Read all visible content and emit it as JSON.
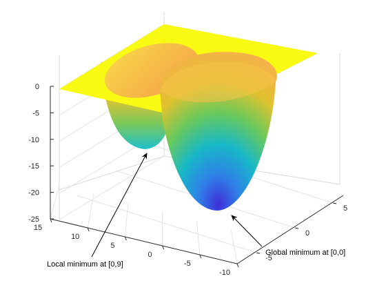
{
  "chart_data": {
    "type": "surface3d",
    "title": "",
    "xlabel": "",
    "ylabel": "",
    "zlabel": "",
    "grid": true,
    "colormap": "parula",
    "z_axis": {
      "range": [
        -25,
        0
      ],
      "ticks": [
        "0",
        "-5",
        "-10",
        "-15",
        "-20",
        "-25"
      ]
    },
    "y_axis": {
      "range": [
        -10,
        15
      ],
      "ticks": [
        "15",
        "10",
        "5",
        "0",
        "-5",
        "-10"
      ]
    },
    "x_axis": {
      "range": [
        -5,
        5
      ],
      "ticks": [
        "-5",
        "0",
        "5"
      ]
    },
    "surface": {
      "plateau_z": 0,
      "wells": [
        {
          "x": 0,
          "y": 0,
          "z_min": -24
        },
        {
          "x": 0,
          "y": 9,
          "z_min": -12
        }
      ]
    },
    "annotations": [
      {
        "text": "Local minimum at [0,9]",
        "target": {
          "x": 0,
          "y": 9,
          "z": -12
        }
      },
      {
        "text": "Global minimum at [0,0]",
        "target": {
          "x": 0,
          "y": 0,
          "z": -24
        }
      }
    ]
  }
}
